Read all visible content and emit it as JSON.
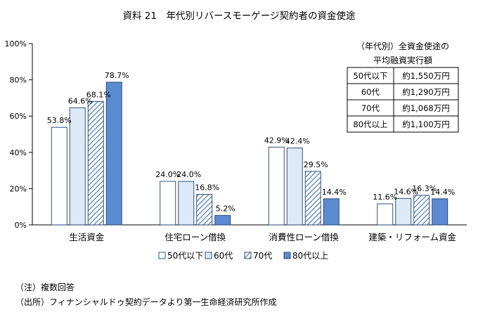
{
  "chart_data": {
    "type": "bar",
    "title": "資料 21　年代別リバースモーゲージ契約者の資金使途",
    "categories": [
      "生活資金",
      "住宅ローン借換",
      "消費性ローン借換",
      "建築・リフォーム資金"
    ],
    "ylim": [
      0,
      100
    ],
    "yticks": [
      0,
      20,
      40,
      60,
      80,
      100
    ],
    "ytick_labels": [
      "0%",
      "20%",
      "40%",
      "60%",
      "80%",
      "100%"
    ],
    "xlabel": "",
    "ylabel": "",
    "grid": false,
    "legend_position": "bottom-center",
    "series": [
      {
        "name": "50代以下",
        "values": [
          53.8,
          24.0,
          42.9,
          11.6
        ],
        "labels": [
          "53.8%",
          "24.0%",
          "42.9%",
          "11.6%"
        ],
        "color": "#ffffff",
        "pattern": "none"
      },
      {
        "name": "60代",
        "values": [
          64.6,
          24.0,
          42.4,
          14.6
        ],
        "labels": [
          "64.6%",
          "24.0%",
          "42.4%",
          "14.6%"
        ],
        "color": "#dde9f6",
        "pattern": "none"
      },
      {
        "name": "70代",
        "values": [
          68.1,
          16.8,
          29.5,
          16.3
        ],
        "labels": [
          "68.1%",
          "16.8%",
          "29.5%",
          "16.3%"
        ],
        "color": "#5b84b6",
        "pattern": "diagonal-hatch"
      },
      {
        "name": "80代以上",
        "values": [
          78.7,
          5.2,
          14.4,
          14.4
        ],
        "labels": [
          "78.7%",
          "5.2%",
          "14.4%",
          "14.4%"
        ],
        "color": "#5b8bd0",
        "pattern": "none"
      }
    ],
    "inset_table": {
      "title_line1": "（年代別）全資金使途の",
      "title_line2": "平均融資実行額",
      "rows": [
        {
          "age": "50代以下",
          "amount": "約1,550万円"
        },
        {
          "age": "60代",
          "amount": "約1,290万円"
        },
        {
          "age": "70代",
          "amount": "約1,068万円"
        },
        {
          "age": "80代以上",
          "amount": "約1,100万円"
        }
      ]
    }
  },
  "notes": {
    "note1": "（注）複数回答",
    "note2": "（出所）フィナンシャルドゥ契約データより第一生命経済研究所作成"
  },
  "colors": {
    "bar_edge": "#1f3e6e",
    "axis": "#000000",
    "hatch_line": "#5b84b6",
    "hatch_bg": "#ffffff"
  }
}
